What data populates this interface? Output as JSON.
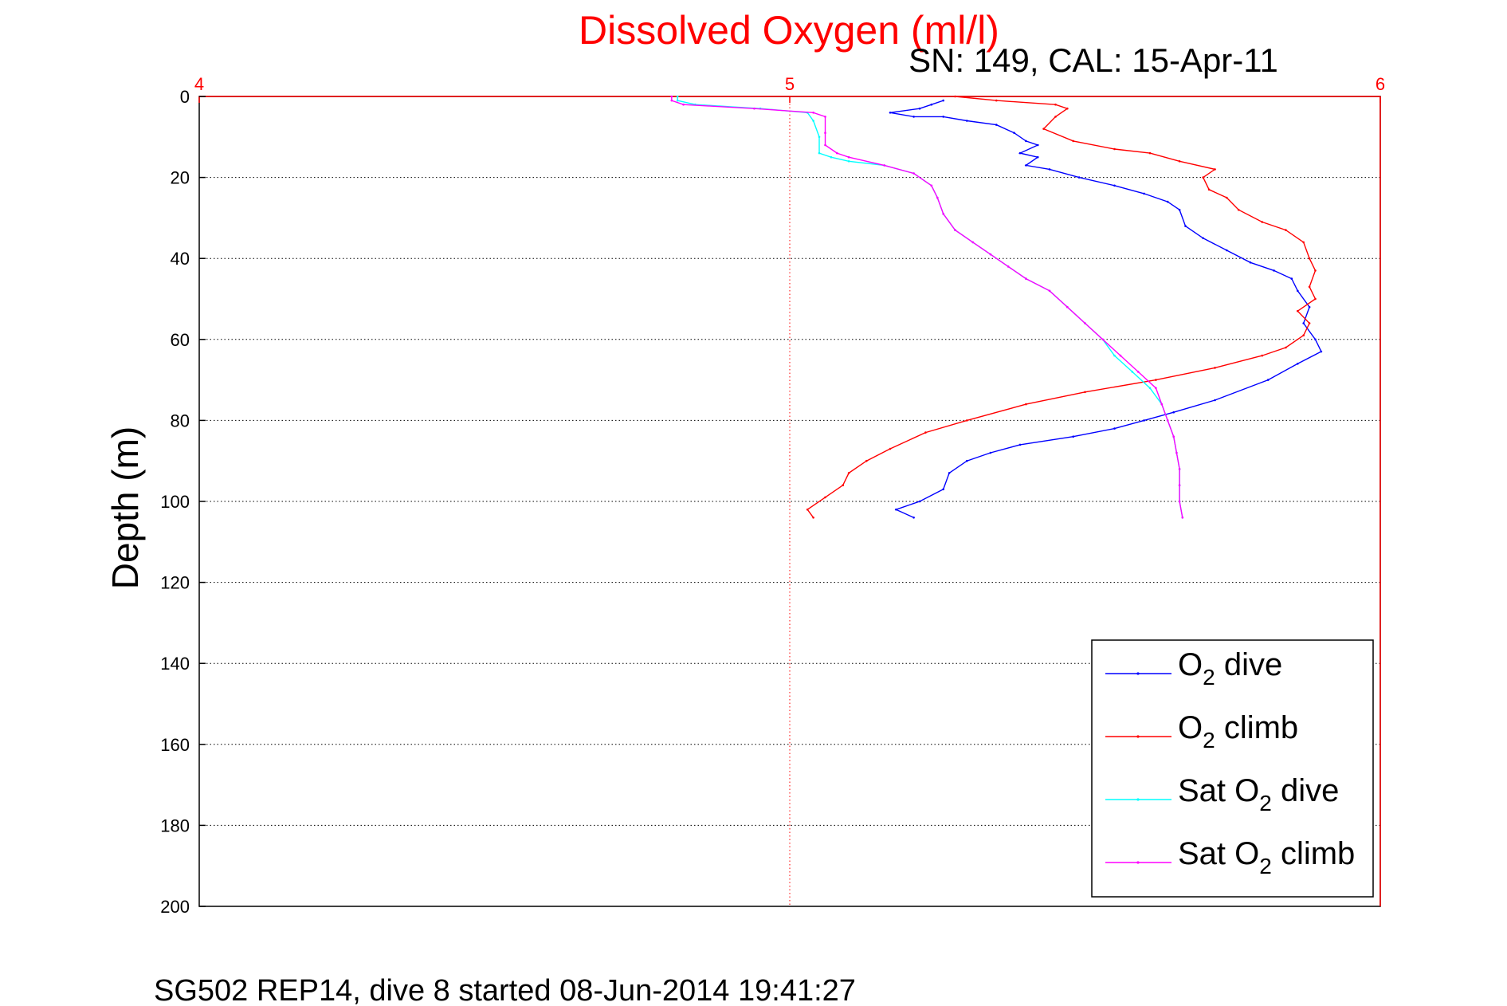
{
  "chart_data": {
    "type": "line",
    "title": "Dissolved Oxygen (ml/l)",
    "subtitle": "SN: 149, CAL: 15-Apr-11",
    "caption": "SG502 REP14, dive 8 started 08-Jun-2014 19:41:27",
    "ylabel": "Depth (m)",
    "xlabel": "",
    "xlim": [
      4,
      6
    ],
    "ylim": [
      0,
      200
    ],
    "y_reversed": true,
    "x_axis_position": "top",
    "xticks": [
      "4",
      "5",
      "6"
    ],
    "yticks": [
      "0",
      "20",
      "40",
      "60",
      "80",
      "100",
      "120",
      "140",
      "160",
      "180",
      "200"
    ],
    "grid": "dotted",
    "legend_position": "bottom-right",
    "colors": {
      "title": "#ff0000",
      "x_axis": "#ff0000",
      "o2_dive": "#0000ff",
      "o2_climb": "#ff0000",
      "sat_dive": "#00ffff",
      "sat_climb": "#ff00ff"
    },
    "series": [
      {
        "id": "o2_dive",
        "legend": {
          "pre": "O",
          "sub": "2",
          "post": " dive"
        },
        "color": "#0000ff",
        "points": [
          [
            5.26,
            1
          ],
          [
            5.24,
            2
          ],
          [
            5.22,
            3
          ],
          [
            5.17,
            4
          ],
          [
            5.21,
            5
          ],
          [
            5.26,
            5
          ],
          [
            5.3,
            6
          ],
          [
            5.35,
            7
          ],
          [
            5.38,
            9
          ],
          [
            5.4,
            11
          ],
          [
            5.42,
            12
          ],
          [
            5.39,
            14
          ],
          [
            5.42,
            15
          ],
          [
            5.4,
            17
          ],
          [
            5.44,
            18
          ],
          [
            5.49,
            20
          ],
          [
            5.55,
            22
          ],
          [
            5.6,
            24
          ],
          [
            5.64,
            26
          ],
          [
            5.66,
            28
          ],
          [
            5.67,
            32
          ],
          [
            5.7,
            35
          ],
          [
            5.74,
            38
          ],
          [
            5.78,
            41
          ],
          [
            5.82,
            43
          ],
          [
            5.85,
            45
          ],
          [
            5.86,
            48
          ],
          [
            5.88,
            52
          ],
          [
            5.87,
            56
          ],
          [
            5.89,
            60
          ],
          [
            5.9,
            63
          ],
          [
            5.86,
            66
          ],
          [
            5.81,
            70
          ],
          [
            5.72,
            75
          ],
          [
            5.65,
            78
          ],
          [
            5.6,
            80
          ],
          [
            5.55,
            82
          ],
          [
            5.48,
            84
          ],
          [
            5.39,
            86
          ],
          [
            5.34,
            88
          ],
          [
            5.3,
            90
          ],
          [
            5.27,
            93
          ],
          [
            5.26,
            97
          ],
          [
            5.22,
            100
          ],
          [
            5.18,
            102
          ],
          [
            5.21,
            104
          ]
        ]
      },
      {
        "id": "o2_climb",
        "legend": {
          "pre": "O",
          "sub": "2",
          "post": " climb"
        },
        "color": "#ff0000",
        "points": [
          [
            5.28,
            0
          ],
          [
            5.35,
            1
          ],
          [
            5.45,
            2
          ],
          [
            5.47,
            3
          ],
          [
            5.45,
            5
          ],
          [
            5.43,
            8
          ],
          [
            5.48,
            11
          ],
          [
            5.55,
            13
          ],
          [
            5.61,
            14
          ],
          [
            5.66,
            16
          ],
          [
            5.72,
            18
          ],
          [
            5.7,
            20
          ],
          [
            5.71,
            23
          ],
          [
            5.74,
            25
          ],
          [
            5.76,
            28
          ],
          [
            5.8,
            31
          ],
          [
            5.84,
            33
          ],
          [
            5.87,
            36
          ],
          [
            5.88,
            40
          ],
          [
            5.89,
            43
          ],
          [
            5.88,
            47
          ],
          [
            5.89,
            50
          ],
          [
            5.86,
            53
          ],
          [
            5.88,
            56
          ],
          [
            5.87,
            59
          ],
          [
            5.84,
            62
          ],
          [
            5.8,
            64
          ],
          [
            5.72,
            67
          ],
          [
            5.62,
            70
          ],
          [
            5.5,
            73
          ],
          [
            5.4,
            76
          ],
          [
            5.3,
            80
          ],
          [
            5.23,
            83
          ],
          [
            5.17,
            87
          ],
          [
            5.13,
            90
          ],
          [
            5.1,
            93
          ],
          [
            5.09,
            96
          ],
          [
            5.06,
            99
          ],
          [
            5.03,
            102
          ],
          [
            5.04,
            104
          ]
        ]
      },
      {
        "id": "sat_dive",
        "legend": {
          "pre": "Sat O",
          "sub": "2",
          "post": " dive"
        },
        "color": "#00ffff",
        "points": [
          [
            4.81,
            0
          ],
          [
            4.81,
            1
          ],
          [
            4.84,
            2
          ],
          [
            4.95,
            3
          ],
          [
            5.03,
            4
          ],
          [
            5.04,
            6
          ],
          [
            5.05,
            10
          ],
          [
            5.05,
            14
          ],
          [
            5.07,
            15
          ],
          [
            5.1,
            16
          ],
          [
            5.16,
            17
          ],
          [
            5.21,
            19
          ],
          [
            5.24,
            22
          ],
          [
            5.25,
            25
          ],
          [
            5.26,
            29
          ],
          [
            5.28,
            33
          ],
          [
            5.31,
            36
          ],
          [
            5.34,
            39
          ],
          [
            5.37,
            42
          ],
          [
            5.4,
            45
          ],
          [
            5.44,
            48
          ],
          [
            5.47,
            52
          ],
          [
            5.5,
            56
          ],
          [
            5.53,
            60
          ],
          [
            5.55,
            64
          ],
          [
            5.58,
            68
          ],
          [
            5.61,
            72
          ],
          [
            5.63,
            76
          ],
          [
            5.64,
            80
          ],
          [
            5.65,
            84
          ],
          [
            5.655,
            88
          ],
          [
            5.66,
            92
          ],
          [
            5.66,
            96
          ],
          [
            5.66,
            100
          ],
          [
            5.665,
            104
          ]
        ]
      },
      {
        "id": "sat_climb",
        "legend": {
          "pre": "Sat O",
          "sub": "2",
          "post": " climb"
        },
        "color": "#ff00ff",
        "points": [
          [
            4.8,
            0
          ],
          [
            4.8,
            1
          ],
          [
            4.82,
            2
          ],
          [
            4.94,
            3
          ],
          [
            5.04,
            4
          ],
          [
            5.06,
            5
          ],
          [
            5.06,
            9
          ],
          [
            5.06,
            12
          ],
          [
            5.08,
            14
          ],
          [
            5.1,
            15
          ],
          [
            5.16,
            17
          ],
          [
            5.21,
            19
          ],
          [
            5.24,
            22
          ],
          [
            5.25,
            25
          ],
          [
            5.26,
            29
          ],
          [
            5.28,
            33
          ],
          [
            5.31,
            36
          ],
          [
            5.34,
            39
          ],
          [
            5.37,
            42
          ],
          [
            5.4,
            45
          ],
          [
            5.44,
            48
          ],
          [
            5.47,
            52
          ],
          [
            5.5,
            56
          ],
          [
            5.53,
            60
          ],
          [
            5.56,
            64
          ],
          [
            5.59,
            68
          ],
          [
            5.62,
            72
          ],
          [
            5.63,
            76
          ],
          [
            5.64,
            80
          ],
          [
            5.65,
            84
          ],
          [
            5.655,
            88
          ],
          [
            5.66,
            92
          ],
          [
            5.66,
            96
          ],
          [
            5.66,
            100
          ],
          [
            5.665,
            104
          ]
        ]
      }
    ]
  }
}
